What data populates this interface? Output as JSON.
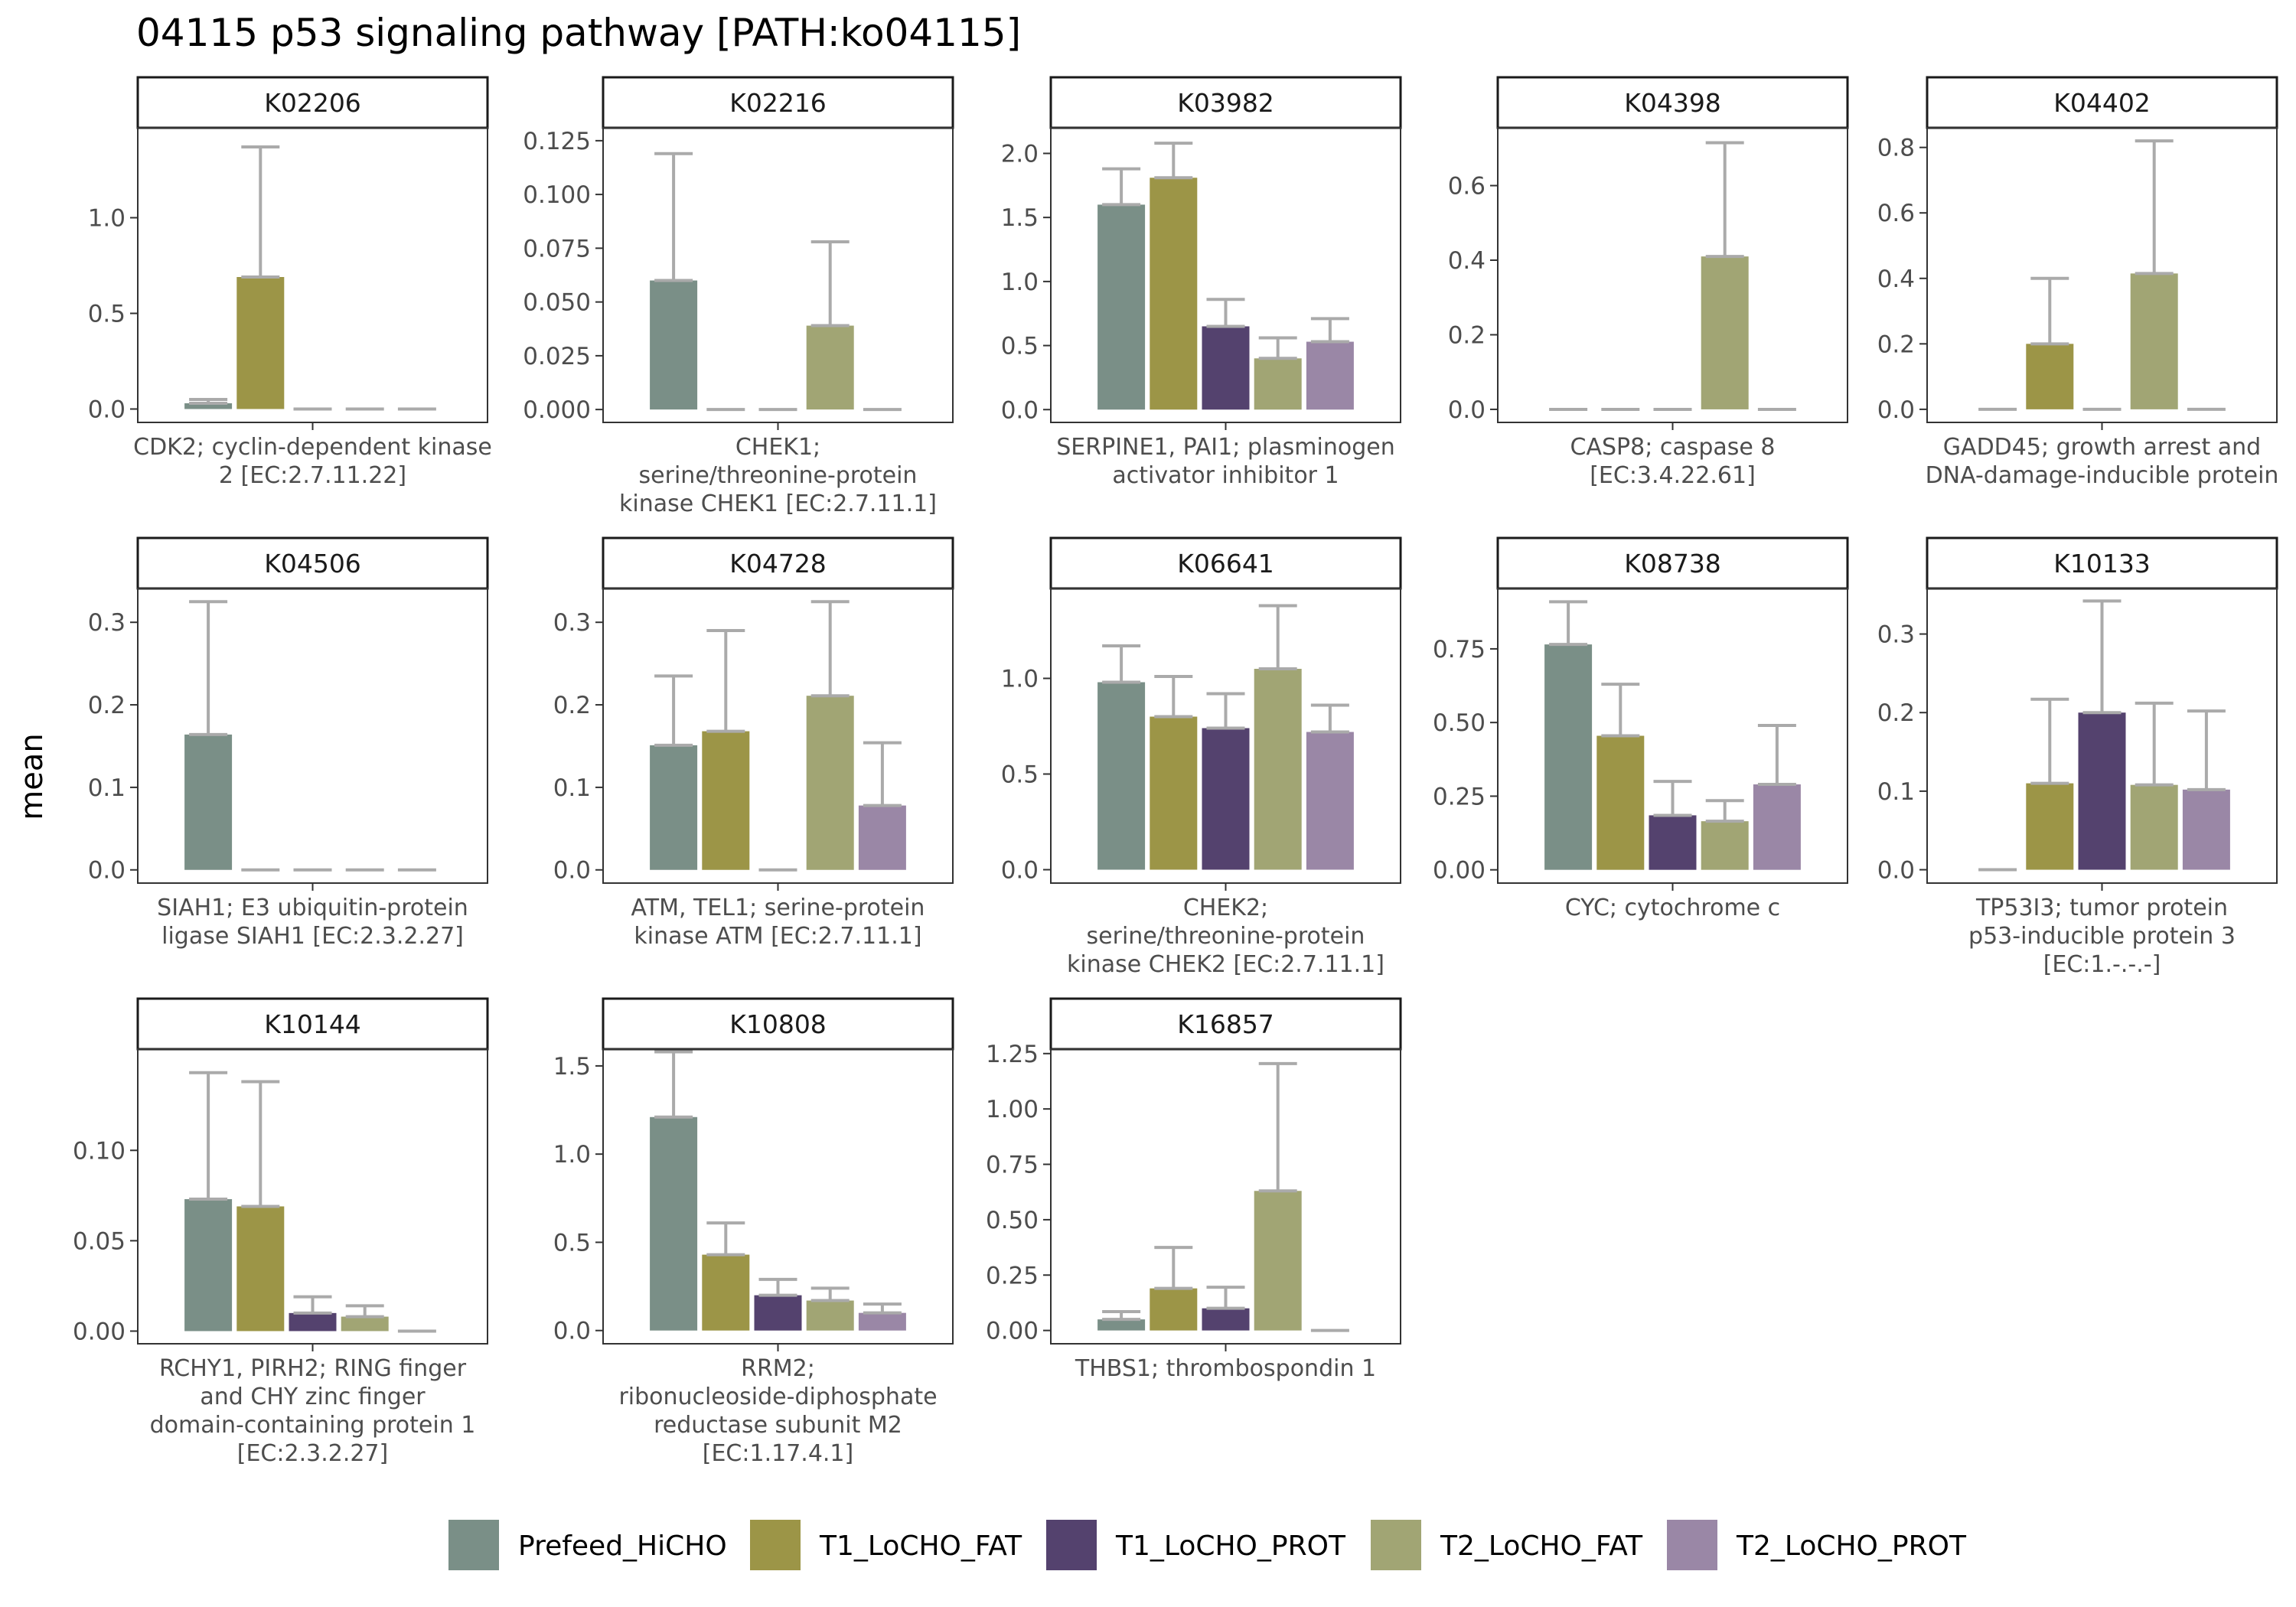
{
  "chart_data": {
    "type": "bar",
    "title": "04115 p53 signaling pathway [PATH:ko04115]",
    "ylabel": "mean",
    "legend": {
      "position": "bottom",
      "groups": [
        "Prefeed_HiCHO",
        "T1_LoCHO_FAT",
        "T1_LoCHO_PROT",
        "T2_LoCHO_FAT",
        "T2_LoCHO_PROT"
      ]
    },
    "colors": {
      "Prefeed_HiCHO": "#7a8f87",
      "T1_LoCHO_FAT": "#9c9547",
      "T1_LoCHO_PROT": "#54426e",
      "T2_LoCHO_FAT": "#a1a574",
      "T2_LoCHO_PROT": "#9a87a6",
      "error_bar": "#aaaaaa"
    },
    "panels": [
      {
        "id": "K02206",
        "caption": [
          "CDK2; cyclin-dependent kinase",
          "2 [EC:2.7.11.22]"
        ],
        "ylim": [
          -0.07,
          1.47
        ],
        "ticks": [
          0.0,
          0.5,
          1.0
        ],
        "tick_labels": [
          "0.0",
          "0.5",
          "1.0"
        ],
        "means": [
          0.03,
          0.69,
          0.0,
          0.0,
          0.0
        ],
        "err": [
          0.05,
          1.37,
          0.0,
          0.0,
          0.0
        ]
      },
      {
        "id": "K02216",
        "caption": [
          "CHEK1;",
          "serine/threonine-protein",
          "kinase CHEK1 [EC:2.7.11.1]"
        ],
        "ylim": [
          -0.006,
          0.131
        ],
        "ticks": [
          0.0,
          0.025,
          0.05,
          0.075,
          0.1,
          0.125
        ],
        "tick_labels": [
          "0.000",
          "0.025",
          "0.050",
          "0.075",
          "0.100",
          "0.125"
        ],
        "means": [
          0.06,
          0.0,
          0.0,
          0.039,
          0.0
        ],
        "err": [
          0.119,
          0.0,
          0.0,
          0.078,
          0.0
        ]
      },
      {
        "id": "K03982",
        "caption": [
          "SERPINE1, PAI1; plasminogen",
          "activator inhibitor 1"
        ],
        "ylim": [
          -0.1,
          2.2
        ],
        "ticks": [
          0.0,
          0.5,
          1.0,
          1.5,
          2.0
        ],
        "tick_labels": [
          "0.0",
          "0.5",
          "1.0",
          "1.5",
          "2.0"
        ],
        "means": [
          1.6,
          1.81,
          0.65,
          0.4,
          0.53
        ],
        "err": [
          1.88,
          2.08,
          0.86,
          0.56,
          0.71
        ]
      },
      {
        "id": "K04398",
        "caption": [
          "CASP8; caspase 8",
          "[EC:3.4.22.61]"
        ],
        "ylim": [
          -0.035,
          0.755
        ],
        "ticks": [
          0.0,
          0.2,
          0.4,
          0.6
        ],
        "tick_labels": [
          "0.0",
          "0.2",
          "0.4",
          "0.6"
        ],
        "means": [
          0.0,
          0.0,
          0.0,
          0.41,
          0.0
        ],
        "err": [
          0.0,
          0.0,
          0.0,
          0.715,
          0.0
        ]
      },
      {
        "id": "K04402",
        "caption": [
          "GADD45; growth arrest and",
          "DNA-damage-inducible protein"
        ],
        "ylim": [
          -0.04,
          0.86
        ],
        "ticks": [
          0.0,
          0.2,
          0.4,
          0.6,
          0.8
        ],
        "tick_labels": [
          "0.0",
          "0.2",
          "0.4",
          "0.6",
          "0.8"
        ],
        "means": [
          0.0,
          0.2,
          0.0,
          0.415,
          0.0
        ],
        "err": [
          0.0,
          0.4,
          0.0,
          0.82,
          0.0
        ]
      },
      {
        "id": "K04506",
        "caption": [
          "SIAH1; E3 ubiquitin-protein",
          "ligase SIAH1 [EC:2.3.2.27]"
        ],
        "ylim": [
          -0.016,
          0.341
        ],
        "ticks": [
          0.0,
          0.1,
          0.2,
          0.3
        ],
        "tick_labels": [
          "0.0",
          "0.1",
          "0.2",
          "0.3"
        ],
        "means": [
          0.164,
          0.0,
          0.0,
          0.0,
          0.0
        ],
        "err": [
          0.325,
          0.0,
          0.0,
          0.0,
          0.0
        ]
      },
      {
        "id": "K04728",
        "caption": [
          "ATM, TEL1; serine-protein",
          "kinase ATM [EC:2.7.11.1]"
        ],
        "ylim": [
          -0.016,
          0.341
        ],
        "ticks": [
          0.0,
          0.1,
          0.2,
          0.3
        ],
        "tick_labels": [
          "0.0",
          "0.1",
          "0.2",
          "0.3"
        ],
        "means": [
          0.151,
          0.168,
          0.0,
          0.211,
          0.078
        ],
        "err": [
          0.235,
          0.29,
          0.0,
          0.325,
          0.154
        ]
      },
      {
        "id": "K06641",
        "caption": [
          "CHEK2;",
          "serine/threonine-protein",
          "kinase CHEK2 [EC:2.7.11.1]"
        ],
        "ylim": [
          -0.07,
          1.47
        ],
        "ticks": [
          0.0,
          0.5,
          1.0
        ],
        "tick_labels": [
          "0.0",
          "0.5",
          "1.0"
        ],
        "means": [
          0.98,
          0.8,
          0.74,
          1.05,
          0.72
        ],
        "err": [
          1.17,
          1.01,
          0.92,
          1.38,
          0.86
        ]
      },
      {
        "id": "K08738",
        "caption": [
          "CYC; cytochrome c"
        ],
        "ylim": [
          -0.045,
          0.955
        ],
        "ticks": [
          0.0,
          0.25,
          0.5,
          0.75
        ],
        "tick_labels": [
          "0.00",
          "0.25",
          "0.50",
          "0.75"
        ],
        "means": [
          0.765,
          0.455,
          0.185,
          0.165,
          0.29
        ],
        "err": [
          0.91,
          0.63,
          0.3,
          0.235,
          0.49
        ]
      },
      {
        "id": "K10133",
        "caption": [
          "TP53I3; tumor protein",
          "p53-inducible protein 3",
          "[EC:1.-.-.-]"
        ],
        "ylim": [
          -0.017,
          0.358
        ],
        "ticks": [
          0.0,
          0.1,
          0.2,
          0.3
        ],
        "tick_labels": [
          "0.0",
          "0.1",
          "0.2",
          "0.3"
        ],
        "means": [
          0.0,
          0.11,
          0.2,
          0.108,
          0.102
        ],
        "err": [
          0.0,
          0.217,
          0.342,
          0.212,
          0.202
        ]
      },
      {
        "id": "K10144",
        "caption": [
          "RCHY1, PIRH2; RING finger",
          "and CHY zinc finger",
          "domain-containing protein 1",
          "[EC:2.3.2.27]"
        ],
        "ylim": [
          -0.007,
          0.156
        ],
        "ticks": [
          0.0,
          0.05,
          0.1
        ],
        "tick_labels": [
          "0.00",
          "0.05",
          "0.10"
        ],
        "means": [
          0.073,
          0.069,
          0.01,
          0.008,
          0.0
        ],
        "err": [
          0.143,
          0.138,
          0.019,
          0.014,
          0.0
        ]
      },
      {
        "id": "K10808",
        "caption": [
          "RRM2;",
          "ribonucleoside-diphosphate",
          "reductase subunit M2",
          "[EC:1.17.4.1]"
        ],
        "ylim": [
          -0.075,
          1.595
        ],
        "ticks": [
          0.0,
          0.5,
          1.0,
          1.5
        ],
        "tick_labels": [
          "0.0",
          "0.5",
          "1.0",
          "1.5"
        ],
        "means": [
          1.21,
          0.43,
          0.2,
          0.17,
          0.1
        ],
        "err": [
          1.58,
          0.61,
          0.29,
          0.24,
          0.15
        ]
      },
      {
        "id": "K16857",
        "caption": [
          "THBS1; thrombospondin 1"
        ],
        "ylim": [
          -0.06,
          1.27
        ],
        "ticks": [
          0.0,
          0.25,
          0.5,
          0.75,
          1.0,
          1.25
        ],
        "tick_labels": [
          "0.00",
          "0.25",
          "0.50",
          "0.75",
          "1.00",
          "1.25"
        ],
        "means": [
          0.05,
          0.19,
          0.1,
          0.63,
          0.0
        ],
        "err": [
          0.085,
          0.375,
          0.195,
          1.205,
          0.0
        ]
      }
    ]
  }
}
